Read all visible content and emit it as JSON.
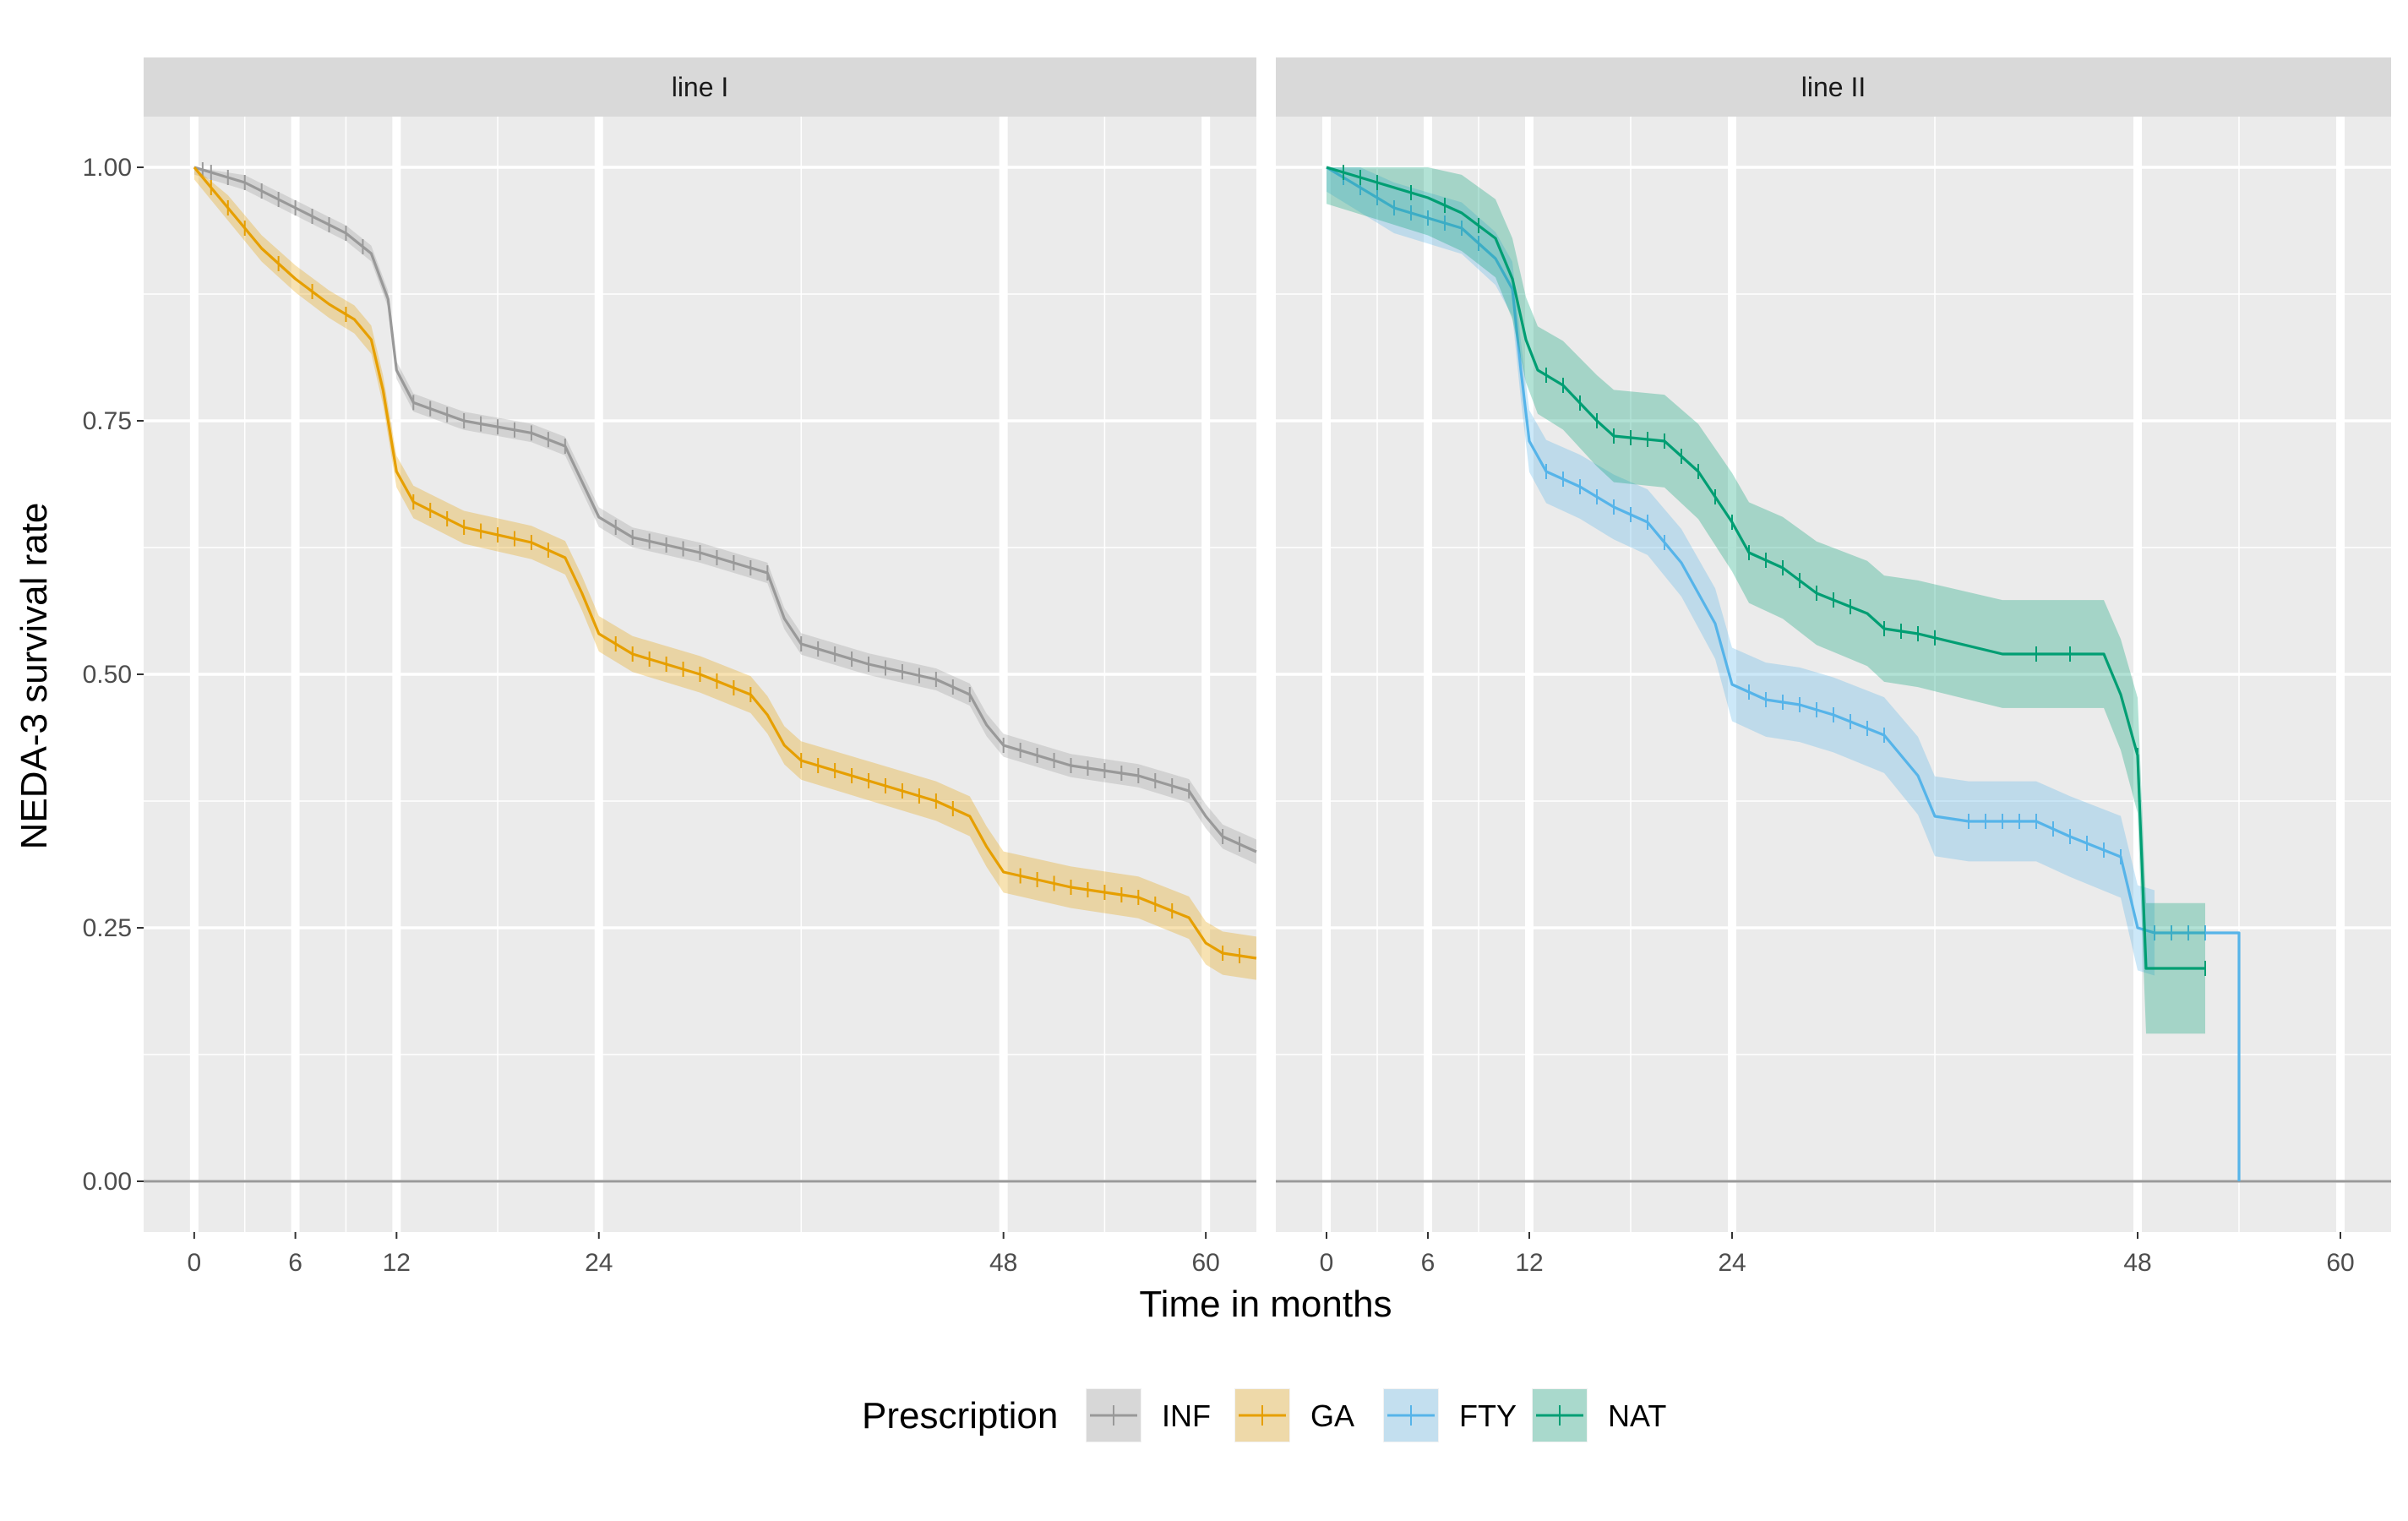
{
  "chart_data": {
    "type": "line",
    "subtype": "kaplan-meier survival curves with confidence bands and censor marks",
    "ylabel": "NEDA-3 survival rate",
    "xlabel": "Time in months",
    "y_ticks": [
      "0.00",
      "0.25",
      "0.50",
      "0.75",
      "1.00"
    ],
    "x_ticks": [
      "0",
      "6",
      "12",
      "24",
      "48",
      "60"
    ],
    "ylim": [
      -0.05,
      1.05
    ],
    "grid": "on",
    "legend": {
      "title": "Prescription",
      "position": "bottom",
      "entries": [
        {
          "label": "INF",
          "color": "#999999"
        },
        {
          "label": "GA",
          "color": "#E69F00"
        },
        {
          "label": "FTY",
          "color": "#56B4E9"
        },
        {
          "label": "NAT",
          "color": "#009E73"
        }
      ]
    },
    "facets": [
      {
        "strip": "line I",
        "xlim": [
          -3,
          63
        ],
        "series": [
          {
            "name": "INF",
            "color": "#999999",
            "points": [
              [
                0,
                1.0
              ],
              [
                3,
                0.985
              ],
              [
                6,
                0.96
              ],
              [
                9,
                0.935
              ],
              [
                10.5,
                0.915
              ],
              [
                11.5,
                0.87
              ],
              [
                12,
                0.8
              ],
              [
                13,
                0.768
              ],
              [
                16,
                0.75
              ],
              [
                20,
                0.738
              ],
              [
                22,
                0.725
              ],
              [
                23,
                0.69
              ],
              [
                24,
                0.655
              ],
              [
                26,
                0.635
              ],
              [
                30,
                0.62
              ],
              [
                34,
                0.6
              ],
              [
                35,
                0.555
              ],
              [
                36,
                0.53
              ],
              [
                40,
                0.51
              ],
              [
                44,
                0.495
              ],
              [
                46,
                0.48
              ],
              [
                47,
                0.45
              ],
              [
                48,
                0.43
              ],
              [
                52,
                0.41
              ],
              [
                56,
                0.4
              ],
              [
                59,
                0.385
              ],
              [
                60,
                0.36
              ],
              [
                61,
                0.34
              ],
              [
                63,
                0.325
              ]
            ],
            "band_halfwidth": 0.012,
            "censor_x": [
              0.5,
              1,
              2,
              3,
              4,
              5,
              6,
              7,
              8,
              9,
              10,
              13,
              14,
              15,
              16,
              17,
              18,
              19,
              20,
              21,
              22,
              25,
              26,
              27,
              28,
              29,
              30,
              31,
              32,
              33,
              34,
              36,
              37,
              38,
              39,
              40,
              41,
              42,
              43,
              44,
              45,
              46,
              48,
              49,
              50,
              51,
              52,
              53,
              54,
              55,
              56,
              57,
              58,
              59,
              61,
              62
            ]
          },
          {
            "name": "GA",
            "color": "#E69F00",
            "points": [
              [
                0,
                1.0
              ],
              [
                2,
                0.96
              ],
              [
                4,
                0.92
              ],
              [
                6,
                0.89
              ],
              [
                8,
                0.865
              ],
              [
                9.5,
                0.85
              ],
              [
                10.5,
                0.83
              ],
              [
                11.2,
                0.78
              ],
              [
                12,
                0.7
              ],
              [
                13,
                0.67
              ],
              [
                16,
                0.645
              ],
              [
                20,
                0.63
              ],
              [
                22,
                0.615
              ],
              [
                23,
                0.58
              ],
              [
                24,
                0.54
              ],
              [
                26,
                0.52
              ],
              [
                30,
                0.5
              ],
              [
                33,
                0.48
              ],
              [
                34,
                0.46
              ],
              [
                35,
                0.43
              ],
              [
                36,
                0.415
              ],
              [
                40,
                0.395
              ],
              [
                44,
                0.375
              ],
              [
                46,
                0.36
              ],
              [
                47,
                0.33
              ],
              [
                48,
                0.305
              ],
              [
                52,
                0.29
              ],
              [
                56,
                0.28
              ],
              [
                59,
                0.26
              ],
              [
                60,
                0.235
              ],
              [
                61,
                0.225
              ],
              [
                63,
                0.22
              ]
            ],
            "band_halfwidth": 0.02,
            "censor_x": [
              1,
              2,
              3,
              5,
              7,
              9,
              13,
              14,
              15,
              16,
              17,
              18,
              19,
              20,
              21,
              25,
              26,
              27,
              28,
              29,
              30,
              31,
              32,
              33,
              36,
              37,
              38,
              39,
              40,
              41,
              42,
              43,
              44,
              45,
              49,
              50,
              51,
              52,
              53,
              54,
              55,
              56,
              57,
              58,
              61,
              62
            ]
          }
        ]
      },
      {
        "strip": "line II",
        "xlim": [
          -3,
          63
        ],
        "series": [
          {
            "name": "FTY",
            "color": "#56B4E9",
            "points": [
              [
                0,
                1.0
              ],
              [
                2,
                0.98
              ],
              [
                4,
                0.96
              ],
              [
                6,
                0.95
              ],
              [
                8,
                0.94
              ],
              [
                10,
                0.91
              ],
              [
                11,
                0.88
              ],
              [
                11.5,
                0.8
              ],
              [
                12,
                0.73
              ],
              [
                13,
                0.7
              ],
              [
                15,
                0.685
              ],
              [
                17,
                0.665
              ],
              [
                19,
                0.65
              ],
              [
                21,
                0.61
              ],
              [
                22,
                0.58
              ],
              [
                23,
                0.55
              ],
              [
                24,
                0.49
              ],
              [
                26,
                0.475
              ],
              [
                28,
                0.47
              ],
              [
                30,
                0.46
              ],
              [
                33,
                0.44
              ],
              [
                35,
                0.4
              ],
              [
                36,
                0.36
              ],
              [
                38,
                0.355
              ],
              [
                42,
                0.355
              ],
              [
                44,
                0.34
              ],
              [
                47,
                0.32
              ],
              [
                48,
                0.25
              ],
              [
                49,
                0.245
              ],
              [
                54,
                0.245
              ],
              [
                54,
                0.0
              ]
            ],
            "band_halfwidth": 0.04,
            "band_end_x": 53,
            "censor_x": [
              1,
              2,
              3,
              4,
              5,
              6,
              7,
              8,
              9,
              13,
              14,
              15,
              16,
              17,
              18,
              19,
              20,
              25,
              26,
              27,
              28,
              29,
              30,
              31,
              32,
              33,
              38,
              39,
              40,
              41,
              42,
              43,
              44,
              45,
              46,
              47,
              49,
              50,
              51,
              52
            ]
          },
          {
            "name": "NAT",
            "color": "#009E73",
            "points": [
              [
                0,
                1.0
              ],
              [
                3,
                0.985
              ],
              [
                6,
                0.97
              ],
              [
                8,
                0.955
              ],
              [
                10,
                0.93
              ],
              [
                11,
                0.89
              ],
              [
                11.8,
                0.83
              ],
              [
                12.5,
                0.8
              ],
              [
                14,
                0.785
              ],
              [
                16,
                0.75
              ],
              [
                17,
                0.735
              ],
              [
                20,
                0.73
              ],
              [
                22,
                0.7
              ],
              [
                24,
                0.65
              ],
              [
                25,
                0.62
              ],
              [
                27,
                0.605
              ],
              [
                29,
                0.58
              ],
              [
                32,
                0.56
              ],
              [
                33,
                0.545
              ],
              [
                35,
                0.54
              ],
              [
                40,
                0.52
              ],
              [
                46,
                0.52
              ],
              [
                47,
                0.48
              ],
              [
                48,
                0.42
              ],
              [
                48.5,
                0.21
              ],
              [
                52,
                0.21
              ]
            ],
            "band_halfwidth": 0.06,
            "band_end_x": 52,
            "censor_x": [
              1,
              2,
              3,
              5,
              7,
              9,
              13,
              14,
              15,
              16,
              17,
              18,
              19,
              20,
              21,
              22,
              23,
              24,
              25,
              26,
              27,
              28,
              29,
              30,
              31,
              33,
              34,
              35,
              36,
              42,
              44,
              48,
              52
            ]
          }
        ]
      }
    ]
  }
}
